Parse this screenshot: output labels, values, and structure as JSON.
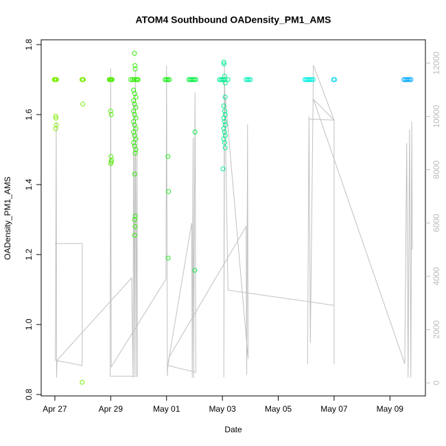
{
  "chart_data": {
    "type": "scatter",
    "title": "ATOM4 Southbound OADensity_PM1_AMS",
    "x_label": "Date",
    "y_label": "OADensity_PM1_AMS",
    "xlim": [
      26.51,
      40.27
    ],
    "ylim": [
      0.796,
      1.8137
    ],
    "y2lim": [
      -489,
      12876
    ],
    "xticks": [
      {
        "value": 27,
        "label": "Apr 27"
      },
      {
        "value": 29,
        "label": "Apr 29"
      },
      {
        "value": 31,
        "label": "May 01"
      },
      {
        "value": 33,
        "label": "May 03"
      },
      {
        "value": 35,
        "label": "May 05"
      },
      {
        "value": 37,
        "label": "May 07"
      },
      {
        "value": 39,
        "label": "May 09"
      }
    ],
    "yticks": [
      0.8,
      {
        "value": 1,
        "label": "1.0"
      },
      1.2,
      1.4,
      1.6,
      1.8
    ],
    "y2ticks": [
      0,
      2000,
      4000,
      6000,
      8000,
      10000,
      12000
    ],
    "y2_color": "#bbbbbb",
    "series": [
      {
        "type": "line",
        "axis": "y2",
        "color": "#c0c0c0",
        "x": [
          27.0,
          27.98,
          27.98,
          27.02,
          27.05,
          27.06,
          27.08,
          29.75,
          29.8,
          29.82,
          29.85,
          29.88,
          29.91,
          29.94,
          29.96,
          28.98,
          29.0,
          29.02,
          30.98,
          31.0,
          31.03,
          31.05,
          31.9,
          31.92,
          31.95,
          31.97,
          32.02,
          32.05,
          31.05,
          31.1,
          33.85,
          33.87,
          33.9,
          33.92,
          33.08,
          33.05,
          33.07,
          33.2,
          37.0,
          37.0,
          37.0,
          36.26,
          36.15,
          36.1,
          36.05,
          36.1,
          37.0,
          36.26,
          39.53,
          39.6,
          39.65,
          39.7,
          39.75,
          39.78,
          39.8
        ],
        "values": [
          5230,
          5230,
          650,
          850,
          9800,
          200,
          850,
          3940,
          200,
          10600,
          300,
          11800,
          250,
          9500,
          250,
          250,
          11800,
          600,
          3900,
          11900,
          250,
          700,
          6000,
          200,
          9200,
          200,
          10900,
          400,
          650,
          980,
          5870,
          300,
          9700,
          900,
          11000,
          200,
          12000,
          3480,
          2910,
          700,
          9860,
          11920,
          1500,
          10000,
          700,
          9900,
          9860,
          10640,
          720,
          9000,
          200,
          9500,
          200,
          9800,
          5000
        ]
      },
      {
        "color": "#7fee00",
        "x": [
          26.98,
          27.0,
          27.02,
          27.04,
          27.06,
          27.03,
          27.04,
          27.05,
          27.03
        ],
        "values": [
          1.7,
          1.7,
          1.7,
          1.7,
          1.7,
          1.595,
          1.59,
          1.57,
          1.56
        ]
      },
      {
        "color": "#74ee00",
        "x": [
          27.97,
          28.0,
          28.02,
          28.0,
          27.98
        ],
        "values": [
          1.7,
          1.7,
          1.7,
          1.63,
          0.835
        ]
      },
      {
        "color": "#50ee00",
        "x": [
          28.95,
          28.98,
          29.0,
          29.03,
          29.05,
          29.0,
          29.02,
          29.01,
          29.03,
          29.0,
          29.02
        ],
        "values": [
          1.7,
          1.7,
          1.7,
          1.7,
          1.7,
          1.61,
          1.6,
          1.48,
          1.47,
          1.46,
          1.465
        ]
      },
      {
        "color": "#2cee00",
        "x": [
          29.72,
          29.78,
          29.84,
          29.9,
          29.95,
          29.98,
          29.85,
          29.87,
          29.88,
          29.82,
          29.86,
          29.9,
          29.82,
          29.86,
          29.9,
          29.82,
          29.86,
          29.9,
          29.82,
          29.86,
          29.9,
          29.82,
          29.86,
          29.9,
          29.82,
          29.86,
          29.9,
          29.88,
          29.86,
          29.88,
          29.86,
          29.88,
          29.86
        ],
        "values": [
          1.7,
          1.7,
          1.7,
          1.7,
          1.7,
          1.7,
          1.775,
          1.74,
          1.73,
          1.67,
          1.66,
          1.65,
          1.64,
          1.63,
          1.62,
          1.61,
          1.6,
          1.59,
          1.58,
          1.57,
          1.56,
          1.55,
          1.54,
          1.53,
          1.52,
          1.51,
          1.5,
          1.49,
          1.43,
          1.31,
          1.3,
          1.28,
          1.255
        ]
      },
      {
        "color": "#12ee12",
        "x": [
          30.95,
          31.0,
          31.05,
          31.1,
          31.05,
          31.07,
          31.06
        ],
        "values": [
          1.7,
          1.7,
          1.7,
          1.7,
          1.48,
          1.38,
          1.19
        ]
      },
      {
        "color": "#00ee40",
        "x": [
          31.8,
          31.85,
          31.9,
          31.95,
          32.0,
          32.05,
          32.02,
          32.01
        ],
        "values": [
          1.7,
          1.7,
          1.7,
          1.7,
          1.7,
          1.7,
          1.55,
          1.155
        ]
      },
      {
        "color": "#00ee90",
        "x": [
          32.9,
          32.95,
          33.0,
          33.05,
          33.1,
          33.2,
          33.05,
          33.06,
          33.08,
          33.1,
          33.1,
          33.05,
          33.08,
          33.1,
          33.05,
          33.08,
          33.1,
          33.05,
          33.08,
          33.1,
          33.05,
          33.08,
          33.1,
          33.02
        ],
        "values": [
          1.7,
          1.7,
          1.7,
          1.7,
          1.7,
          1.7,
          1.75,
          1.745,
          1.71,
          1.69,
          1.65,
          1.625,
          1.61,
          1.6,
          1.59,
          1.58,
          1.57,
          1.56,
          1.55,
          1.54,
          1.53,
          1.52,
          1.505,
          1.445
        ]
      },
      {
        "color": "#00eeb8",
        "x": [
          33.85,
          33.9,
          33.95,
          34.0
        ],
        "values": [
          1.7,
          1.7,
          1.7,
          1.7
        ]
      },
      {
        "color": "#00eee0",
        "x": [
          35.95,
          36.0,
          36.05,
          36.1,
          36.15,
          36.2,
          36.25
        ],
        "values": [
          1.7,
          1.7,
          1.7,
          1.7,
          1.7,
          1.7,
          1.7
        ]
      },
      {
        "color": "#00d8f0",
        "x": [
          36.98,
          37.02
        ],
        "values": [
          1.7,
          1.7
        ]
      },
      {
        "color": "#00a8ff",
        "x": [
          39.5,
          39.55,
          39.6,
          39.65,
          39.7,
          39.75
        ],
        "values": [
          1.7,
          1.7,
          1.7,
          1.7,
          1.7,
          1.7
        ]
      }
    ]
  }
}
